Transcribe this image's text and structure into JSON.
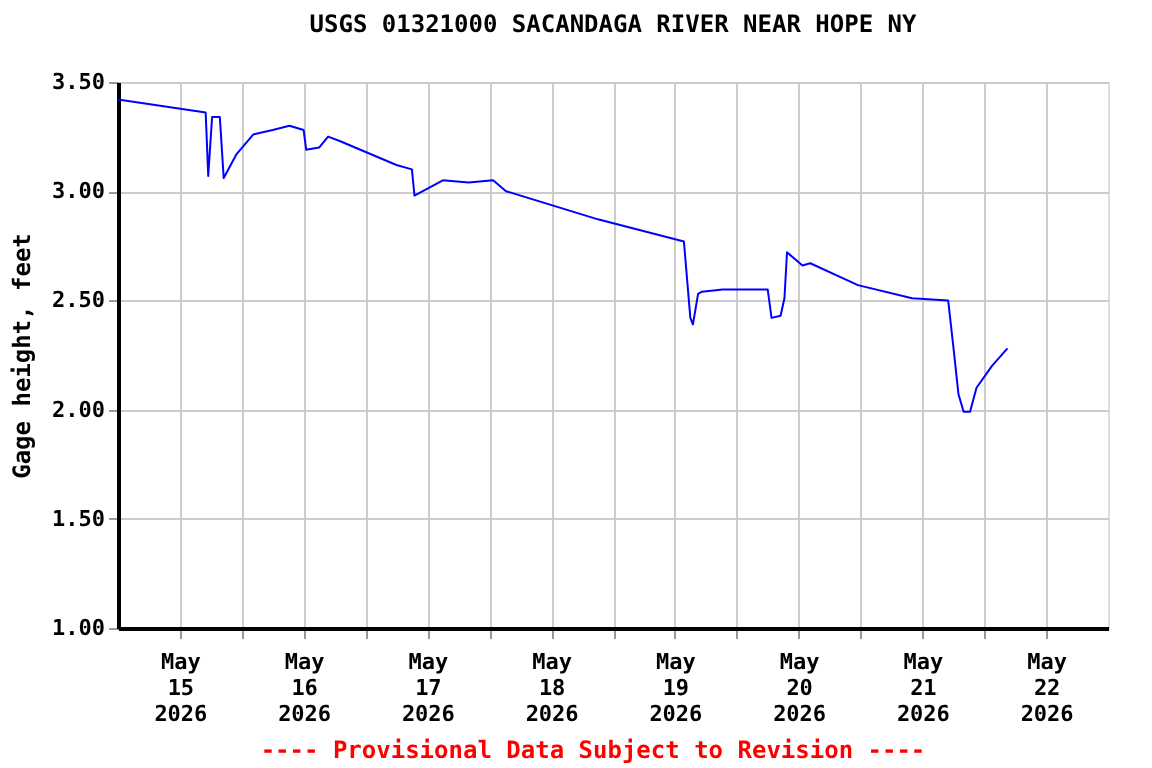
{
  "chart_data": {
    "type": "line",
    "title": "USGS 01321000 SACANDAGA RIVER NEAR HOPE NY",
    "ylabel": "Gage height, feet",
    "annotations": [
      "---- Provisional Data Subject to Revision ----"
    ],
    "x": [
      "2026-05-15T00:00",
      "2026-05-15T17:00",
      "2026-05-15T17:30",
      "2026-05-15T18:15",
      "2026-05-15T19:45",
      "2026-05-15T20:30",
      "2026-05-15T23:00",
      "2026-05-16T02:15",
      "2026-05-16T06:00",
      "2026-05-16T09:15",
      "2026-05-16T12:00",
      "2026-05-16T12:30",
      "2026-05-16T15:00",
      "2026-05-16T16:45",
      "2026-05-16T19:00",
      "2026-05-17T06:00",
      "2026-05-17T09:00",
      "2026-05-17T09:30",
      "2026-05-17T15:00",
      "2026-05-17T20:00",
      "2026-05-18T00:45",
      "2026-05-18T03:15",
      "2026-05-18T21:15",
      "2026-05-19T13:45",
      "2026-05-19T15:00",
      "2026-05-19T15:30",
      "2026-05-19T16:30",
      "2026-05-19T17:15",
      "2026-05-19T21:15",
      "2026-05-20T06:00",
      "2026-05-20T06:45",
      "2026-05-20T08:30",
      "2026-05-20T09:15",
      "2026-05-20T09:45",
      "2026-05-20T12:45",
      "2026-05-20T14:15",
      "2026-05-20T23:30",
      "2026-05-21T10:00",
      "2026-05-21T17:00",
      "2026-05-21T18:00",
      "2026-05-21T19:00",
      "2026-05-21T20:00",
      "2026-05-21T21:15",
      "2026-05-21T22:30",
      "2026-05-22T01:30",
      "2026-05-22T04:30"
    ],
    "series": [
      {
        "color": "#0000ff",
        "values": [
          3.42,
          3.36,
          3.07,
          3.34,
          3.34,
          3.06,
          3.17,
          3.26,
          3.28,
          3.3,
          3.28,
          3.19,
          3.2,
          3.25,
          3.23,
          3.12,
          3.1,
          2.98,
          3.05,
          3.04,
          3.05,
          3.0,
          2.87,
          2.77,
          2.42,
          2.39,
          2.53,
          2.54,
          2.55,
          2.55,
          2.42,
          2.43,
          2.51,
          2.72,
          2.66,
          2.67,
          2.57,
          2.51,
          2.5,
          2.29,
          2.07,
          1.99,
          1.99,
          2.1,
          2.2,
          2.28
        ]
      }
    ],
    "xlim": [
      "2026-05-15T00:00",
      "2026-05-23T00:00"
    ],
    "xticks": [
      {
        "value": "2026-05-15T12:00",
        "label": "May\n15\n2026"
      },
      {
        "value": "2026-05-16T00:00",
        "label": null
      },
      {
        "value": "2026-05-16T12:00",
        "label": "May\n16\n2026"
      },
      {
        "value": "2026-05-17T00:00",
        "label": null
      },
      {
        "value": "2026-05-17T12:00",
        "label": "May\n17\n2026"
      },
      {
        "value": "2026-05-18T00:00",
        "label": null
      },
      {
        "value": "2026-05-18T12:00",
        "label": "May\n18\n2026"
      },
      {
        "value": "2026-05-19T00:00",
        "label": null
      },
      {
        "value": "2026-05-19T12:00",
        "label": "May\n19\n2026"
      },
      {
        "value": "2026-05-20T00:00",
        "label": null
      },
      {
        "value": "2026-05-20T12:00",
        "label": "May\n20\n2026"
      },
      {
        "value": "2026-05-21T00:00",
        "label": null
      },
      {
        "value": "2026-05-21T12:00",
        "label": "May\n21\n2026"
      },
      {
        "value": "2026-05-22T00:00",
        "label": null
      },
      {
        "value": "2026-05-22T12:00",
        "label": "May\n22\n2026"
      }
    ],
    "ylim": [
      1.0,
      3.5
    ],
    "yticks": [
      {
        "value": 1.0,
        "label": "1.00"
      },
      {
        "value": 1.5,
        "label": "1.50"
      },
      {
        "value": 2.0,
        "label": "2.00"
      },
      {
        "value": 2.5,
        "label": "2.50"
      },
      {
        "value": 3.0,
        "label": "3.00"
      },
      {
        "value": 3.5,
        "label": "3.50"
      }
    ],
    "grid": true,
    "line_style": "solid",
    "marker": "none"
  }
}
